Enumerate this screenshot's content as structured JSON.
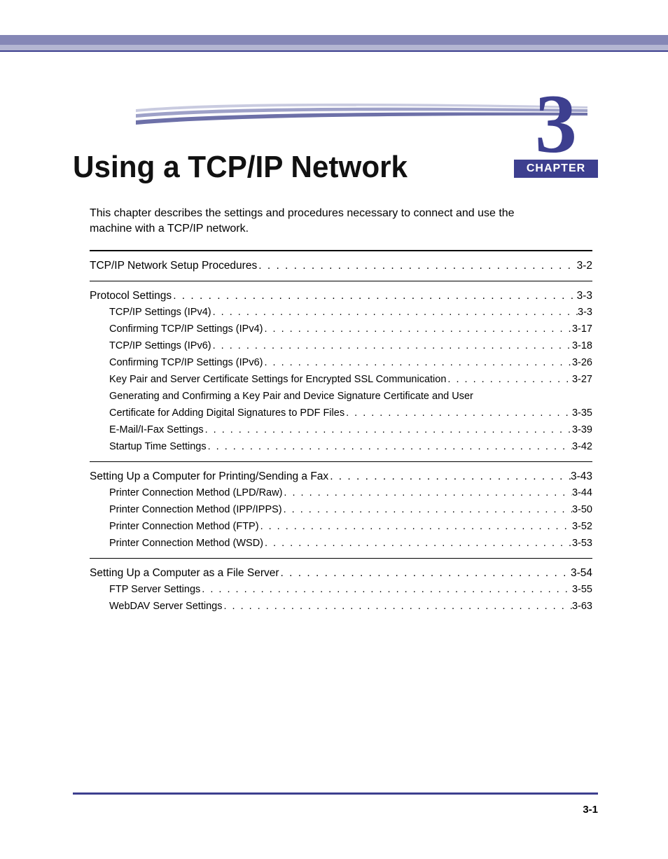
{
  "colors": {
    "band": "#8587b6",
    "band_light": "#b4b6d2",
    "rule_accent": "#3d3f8f",
    "chapter_num": "#3d3f8f",
    "chapter_label_bg": "#3d3f8f",
    "chapter_label_fg": "#ffffff",
    "title": "#111111",
    "body": "#000000",
    "bottom_rule": "#3d3f8f",
    "swoosh_top": "#c9cbe0",
    "swoosh_mid": "#9ea1c8",
    "swoosh_bot": "#6d70a8"
  },
  "chapter": {
    "number": "3",
    "label": "CHAPTER",
    "title": "Using a TCP/IP Network",
    "intro": "This chapter describes the settings and procedures necessary to connect and use the machine with a TCP/IP network."
  },
  "toc": [
    {
      "entries": [
        {
          "label": "TCP/IP Network Setup Procedures",
          "page": "3-2",
          "level": 0
        }
      ]
    },
    {
      "entries": [
        {
          "label": "Protocol Settings",
          "page": "3-3",
          "level": 0
        },
        {
          "label": "TCP/IP Settings (IPv4)",
          "page": "3-3",
          "level": 1
        },
        {
          "label": "Confirming TCP/IP Settings (IPv4)",
          "page": "3-17",
          "level": 1
        },
        {
          "label": "TCP/IP Settings (IPv6)",
          "page": "3-18",
          "level": 1
        },
        {
          "label": "Confirming TCP/IP Settings (IPv6)",
          "page": "3-26",
          "level": 1
        },
        {
          "label": "Key Pair and Server Certificate Settings for Encrypted SSL Communication",
          "page": "3-27",
          "level": 1
        },
        {
          "label": "Generating and Confirming a Key Pair and Device Signature Certificate and User",
          "page": "",
          "level": 1,
          "nodots": true
        },
        {
          "label": "Certificate for Adding Digital Signatures to PDF Files",
          "page": "3-35",
          "level": 1,
          "cont": true
        },
        {
          "label": "E-Mail/I-Fax Settings",
          "page": "3-39",
          "level": 1
        },
        {
          "label": "Startup Time Settings",
          "page": "3-42",
          "level": 1
        }
      ]
    },
    {
      "entries": [
        {
          "label": "Setting Up a Computer for Printing/Sending a Fax",
          "page": "3-43",
          "level": 0
        },
        {
          "label": "Printer Connection Method (LPD/Raw)",
          "page": "3-44",
          "level": 1
        },
        {
          "label": "Printer Connection Method (IPP/IPPS)",
          "page": "3-50",
          "level": 1
        },
        {
          "label": "Printer Connection Method (FTP)",
          "page": "3-52",
          "level": 1
        },
        {
          "label": "Printer Connection Method (WSD)",
          "page": "3-53",
          "level": 1
        }
      ]
    },
    {
      "entries": [
        {
          "label": "Setting Up a Computer as a File Server",
          "page": "3-54",
          "level": 0
        },
        {
          "label": "FTP Server Settings",
          "page": "3-55",
          "level": 1
        },
        {
          "label": "WebDAV Server Settings",
          "page": "3-63",
          "level": 1
        }
      ]
    }
  ],
  "footer": {
    "page": "3-1"
  }
}
